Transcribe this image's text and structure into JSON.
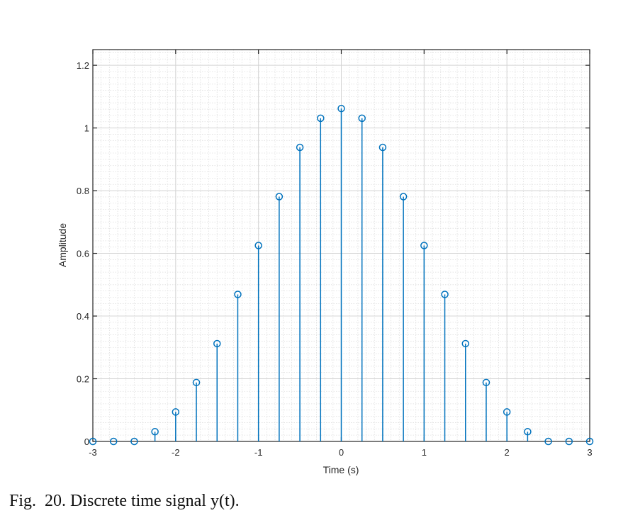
{
  "chart_data": {
    "type": "stem",
    "title": "",
    "xlabel": "Time (s)",
    "ylabel": "Amplitude",
    "xlim": [
      -3,
      3
    ],
    "ylim": [
      0,
      1.25
    ],
    "xticks": [
      -3,
      -2,
      -1,
      0,
      1,
      2,
      3
    ],
    "xtick_labels": [
      "-3",
      "-2",
      "-1",
      "0",
      "1",
      "2",
      "3"
    ],
    "yticks": [
      0,
      0.2,
      0.4,
      0.6,
      0.8,
      1,
      1.2
    ],
    "ytick_labels": [
      "0",
      "0.2",
      "0.4",
      "0.6",
      "0.8",
      "1",
      "1.2"
    ],
    "grid": true,
    "minor_grid": true,
    "color": "#0072BD",
    "x": [
      -3,
      -2.75,
      -2.5,
      -2.25,
      -2,
      -1.75,
      -1.5,
      -1.25,
      -1,
      -0.75,
      -0.5,
      -0.25,
      0,
      0.25,
      0.5,
      0.75,
      1,
      1.25,
      1.5,
      1.75,
      2,
      2.25,
      2.5,
      2.75,
      3
    ],
    "values": [
      0,
      0,
      0,
      0.031,
      0.094,
      0.188,
      0.312,
      0.469,
      0.625,
      0.781,
      0.938,
      1.031,
      1.062,
      1.031,
      0.938,
      0.781,
      0.625,
      0.469,
      0.312,
      0.188,
      0.094,
      0.031,
      0,
      0,
      0
    ]
  },
  "caption": "Fig.  20. Discrete time signal y(t)."
}
